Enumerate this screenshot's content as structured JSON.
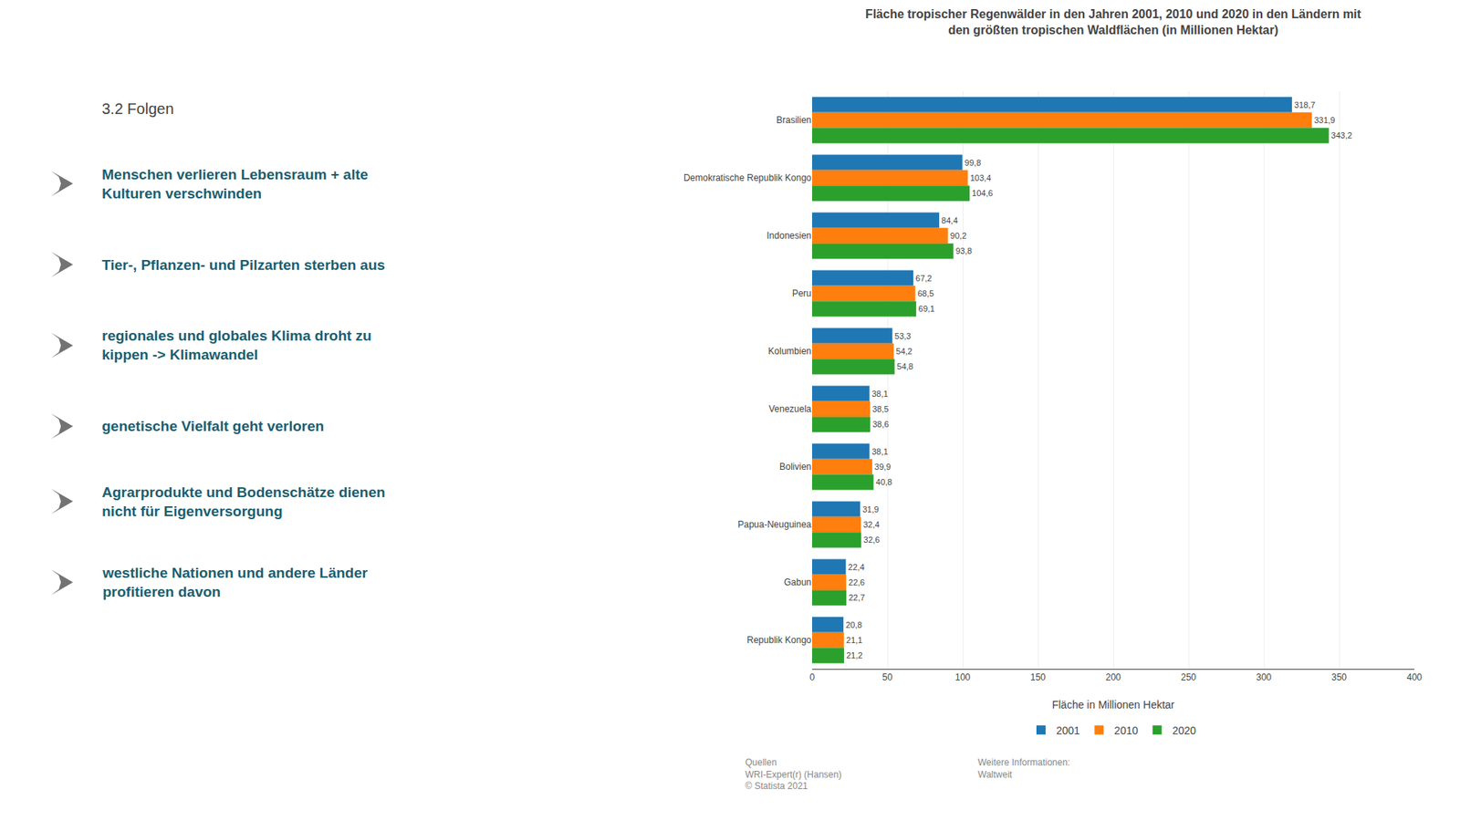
{
  "chart_data": {
    "type": "bar",
    "orientation": "horizontal",
    "title": "Fläche tropischer Regenwälder in den Jahren 2001, 2010 und 2020 in den Ländern mit\nden größten tropischen Waldflächen (in Millionen Hektar)",
    "xlabel": "Fläche in Millionen Hektar",
    "categories": [
      "Brasilien",
      "Demokratische Republik Kongo",
      "Indonesien",
      "Peru",
      "Kolumbien",
      "Venezuela",
      "Bolivien",
      "Papua-Neuguinea",
      "Gabun",
      "Republik Kongo"
    ],
    "series": [
      {
        "name": "2001",
        "values": [
          318.7,
          99.8,
          84.4,
          67.2,
          53.3,
          38.1,
          38.1,
          31.9,
          22.4,
          20.8
        ],
        "value_labels": [
          "318,7",
          "99,8",
          "84,4",
          "67,2",
          "53,3",
          "38,1",
          "38,1",
          "31,9",
          "22,4",
          "20,8"
        ]
      },
      {
        "name": "2010",
        "values": [
          331.9,
          103.4,
          90.2,
          68.5,
          54.2,
          38.5,
          39.9,
          32.4,
          22.6,
          21.1
        ],
        "value_labels": [
          "331,9",
          "103,4",
          "90,2",
          "68,5",
          "54,2",
          "38,5",
          "39,9",
          "32,4",
          "22,6",
          "21,1"
        ]
      },
      {
        "name": "2020",
        "values": [
          343.2,
          104.6,
          93.8,
          69.1,
          54.8,
          38.6,
          40.8,
          32.6,
          22.7,
          21.2
        ],
        "value_labels": [
          "343,2",
          "104,6",
          "93,8",
          "69,1",
          "54,8",
          "38,6",
          "40,8",
          "32,6",
          "22,7",
          "21,2"
        ]
      }
    ],
    "xlim": [
      0,
      400
    ],
    "xticks": [
      0,
      50,
      100,
      150,
      200,
      250,
      300,
      350,
      400
    ],
    "grid": true,
    "legend": "bottom",
    "data_labels": true,
    "annotations": [
      "3.2 Folgen",
      "Menschen verlieren Lebensraum + alte\nKulturen verschwinden",
      "Tier-, Pflanzen- und Pilzarten sterben aus",
      "regionales und globales Klima droht zu\nkippen -> Klimawandel",
      "genetische Vielfalt geht verloren",
      "Agrarprodukte und Bodenschätze dienen\nnicht für Eigenversorgung",
      "westliche Nationen und andere Länder\nprofitieren davon",
      "Quellen\nWRI-Expert(r) (Hansen)\n© Statista 2021",
      "Weitere Informationen:\nWaltweit"
    ]
  }
}
